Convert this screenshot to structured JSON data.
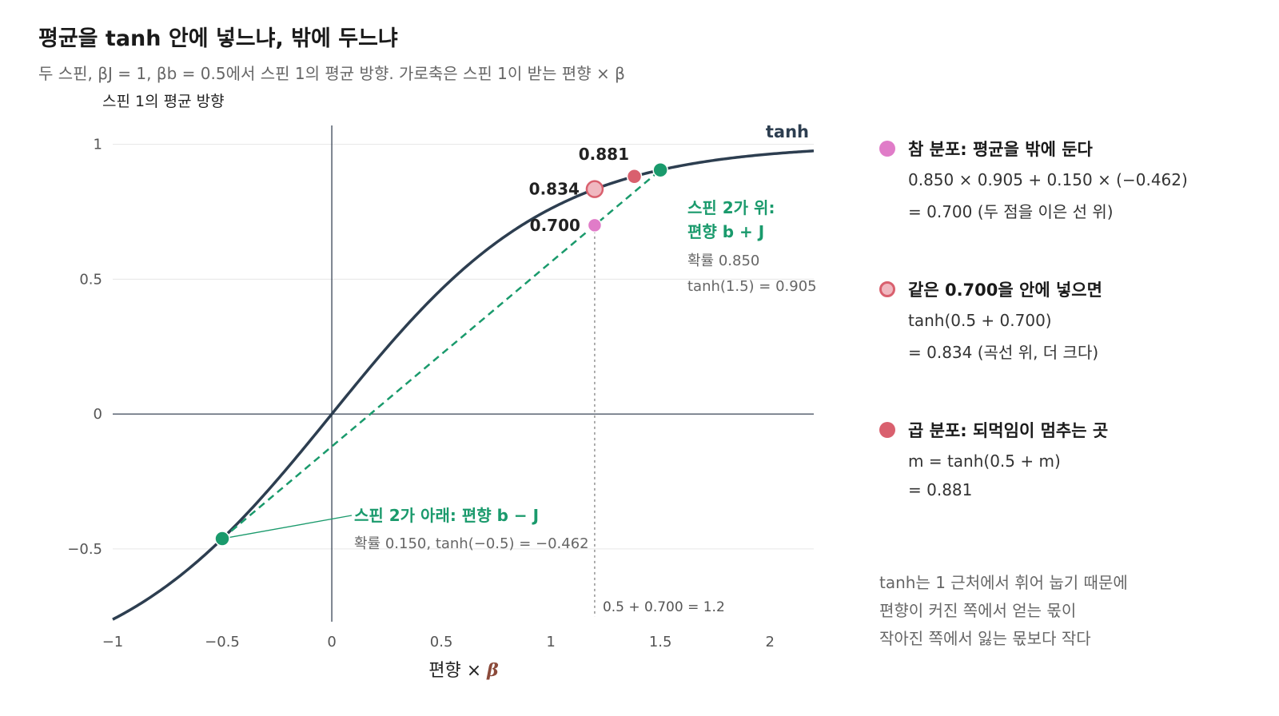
{
  "title": "평균을 tanh 안에 넣느냐, 밖에 두느냐",
  "subtitle": "두 스핀, βJ = 1, βb = 0.5에서 스핀 1의 평균 방향. 가로축은 스핀 1이 받는 편향 × β",
  "chart_data": {
    "type": "line",
    "ylabel": "스핀 1의 평균 방향",
    "xlabel": "편향 × ",
    "xlabel_symbol": "β",
    "xlim": [
      -1,
      2.2
    ],
    "ylim": [
      -0.77,
      1.07
    ],
    "x_ticks": [
      -1,
      -0.5,
      0,
      0.5,
      1,
      1.5,
      2
    ],
    "x_tick_labels": [
      "−1",
      "−0.5",
      "0",
      "0.5",
      "1",
      "1.5",
      "2"
    ],
    "y_ticks": [
      -0.5,
      0,
      0.5,
      1
    ],
    "y_tick_labels": [
      "−0.5",
      "0",
      "0.5",
      "1"
    ],
    "grid": true,
    "curve": {
      "name": "tanh",
      "function": "tanh",
      "color": "#2d3e50"
    },
    "chord": {
      "from": [
        -0.5,
        -0.462
      ],
      "to": [
        1.5,
        0.905
      ],
      "color": "#1a9a6c"
    },
    "points": [
      {
        "id": "spin2-down",
        "x": -0.5,
        "y": -0.462,
        "color": "#1a9a6c",
        "label": ""
      },
      {
        "id": "spin2-up",
        "x": 1.5,
        "y": 0.905,
        "color": "#1a9a6c",
        "label": ""
      },
      {
        "id": "true-mean",
        "x": 1.2,
        "y": 0.7,
        "color": "#e07cc8",
        "label": "0.700"
      },
      {
        "id": "mean-inside",
        "x": 1.2,
        "y": 0.834,
        "color": "#f0b8c0",
        "stroke": "#d9606e",
        "label": "0.834"
      },
      {
        "id": "product-fixed",
        "x": 1.381,
        "y": 0.881,
        "color": "#d9606e",
        "label": "0.881"
      }
    ],
    "vline": {
      "x": 1.2,
      "label": "0.5 + 0.700 = 1.2"
    },
    "annotations": {
      "up_title": [
        "스핀 2가 위:",
        "편향 b + J"
      ],
      "up_detail": [
        "확률 0.850",
        "tanh(1.5) = 0.905"
      ],
      "down_title": "스핀 2가 아래: 편향 b − J",
      "down_detail": "확률 0.150, tanh(−0.5) = −0.462"
    }
  },
  "legend": [
    {
      "color": "#e07cc8",
      "title": "참 분포: 평균을 밖에 둔다",
      "lines": [
        "0.850 × 0.905 + 0.150 × (−0.462)",
        "= 0.700 (두 점을 이은 선 위)"
      ]
    },
    {
      "color": "#f0b8c0",
      "stroke": "#d9606e",
      "title": "같은 0.700을 안에 넣으면",
      "lines": [
        "tanh(0.5 + 0.700)",
        "= 0.834 (곡선 위, 더 크다)"
      ]
    },
    {
      "color": "#d9606e",
      "title": "곱 분포: 되먹임이 멈추는 곳",
      "lines": [
        "m = tanh(0.5 + m)",
        "= 0.881"
      ]
    }
  ],
  "note": [
    "tanh는 1 근처에서 휘어 눕기 때문에",
    "편향이 커진 쪽에서 얻는 몫이",
    "작아진 쪽에서 잃는 몫보다 작다"
  ]
}
